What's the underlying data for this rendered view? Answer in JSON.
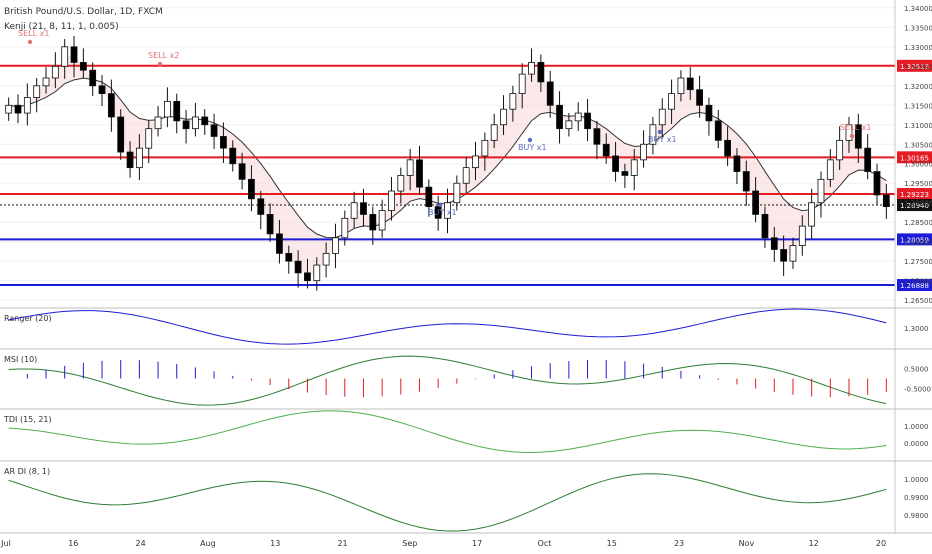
{
  "header": {
    "title": "British Pound/U.S. Dollar, 1D, FXCM",
    "indicator": "Kenji (21, 8, 11, 1, 0.005)"
  },
  "chart_data": [
    {
      "type": "candlestick",
      "panel": "price",
      "y_ticks": [
        "1.34000",
        "1.33500",
        "1.33000",
        "1.32500",
        "1.32000",
        "1.31500",
        "1.31000",
        "1.30500",
        "1.30000",
        "1.29500",
        "1.29000",
        "1.28500",
        "1.28000",
        "1.27500",
        "1.27000",
        "1.26500"
      ],
      "ylim": [
        1.2635,
        1.3415
      ],
      "x_ticks": [
        "Jul",
        "16",
        "24",
        "Aug",
        "13",
        "21",
        "Sep",
        "17",
        "Oct",
        "15",
        "23",
        "Nov",
        "12",
        "20"
      ],
      "levels": [
        {
          "value": 1.32513,
          "label": "1.32513",
          "color": "#e51c23"
        },
        {
          "value": 1.30165,
          "label": "1.30165",
          "color": "#e51c23"
        },
        {
          "value": 1.29223,
          "label": "1.29223",
          "color": "#e51c23"
        },
        {
          "value": 1.2894,
          "label": "1.28940",
          "color": "#111111"
        },
        {
          "value": 1.28059,
          "label": "1.28059",
          "color": "#1c1cd6"
        },
        {
          "value": 1.26888,
          "label": "1.26888",
          "color": "#1c1cd6"
        }
      ],
      "close": [
        1.315,
        1.313,
        1.317,
        1.32,
        1.322,
        1.325,
        1.33,
        1.326,
        1.324,
        1.32,
        1.318,
        1.312,
        1.303,
        1.299,
        1.304,
        1.309,
        1.312,
        1.316,
        1.311,
        1.309,
        1.312,
        1.31,
        1.307,
        1.304,
        1.3,
        1.296,
        1.291,
        1.287,
        1.282,
        1.277,
        1.275,
        1.272,
        1.27,
        1.274,
        1.277,
        1.281,
        1.286,
        1.29,
        1.287,
        1.283,
        1.288,
        1.293,
        1.297,
        1.301,
        1.294,
        1.289,
        1.286,
        1.29,
        1.295,
        1.299,
        1.302,
        1.306,
        1.31,
        1.314,
        1.318,
        1.323,
        1.326,
        1.321,
        1.315,
        1.309,
        1.311,
        1.313,
        1.309,
        1.305,
        1.302,
        1.298,
        1.297,
        1.301,
        1.305,
        1.31,
        1.314,
        1.318,
        1.322,
        1.319,
        1.315,
        1.311,
        1.306,
        1.302,
        1.298,
        1.293,
        1.287,
        1.281,
        1.278,
        1.275,
        1.279,
        1.284,
        1.29,
        1.296,
        1.301,
        1.306,
        1.31,
        1.304,
        1.298,
        1.292,
        1.289
      ],
      "annotations": [
        {
          "text": "SELL x1",
          "color": "#e57373"
        },
        {
          "text": "SELL x2",
          "color": "#e57373"
        },
        {
          "text": "BUY x1",
          "color": "#5c6bc0"
        },
        {
          "text": "BUY x1",
          "color": "#5c6bc0"
        },
        {
          "text": "BUY x1",
          "color": "#5c6bc0"
        },
        {
          "text": "SELL x1",
          "color": "#e57373"
        }
      ]
    },
    {
      "type": "line",
      "panel": "Ranger (20)",
      "title": "Ranger (20)",
      "y_ticks": [
        "1.3000"
      ]
    },
    {
      "type": "histogram",
      "panel": "MSI (10)",
      "title": "MSI (10)",
      "y_ticks": [
        "0.5000",
        "-0.5000"
      ]
    },
    {
      "type": "line",
      "panel": "TDI (15, 21)",
      "title": "TDI (15, 21)",
      "y_ticks": [
        "1.0000",
        "0.0000"
      ]
    },
    {
      "type": "line",
      "panel": "AR DI (8, 1)",
      "title": "AR DI (8, 1)",
      "y_ticks": [
        "1.0000",
        "0.9900",
        "0.9800"
      ]
    }
  ],
  "colors": {
    "up": "#ffffff",
    "down": "#000000",
    "bull": "#d6d6f5",
    "bear": "#f7d6d6",
    "red": "#e51c23",
    "blue": "#1c1cd6",
    "buy_marker": "#3f51b5",
    "sell_marker": "#e53935"
  }
}
